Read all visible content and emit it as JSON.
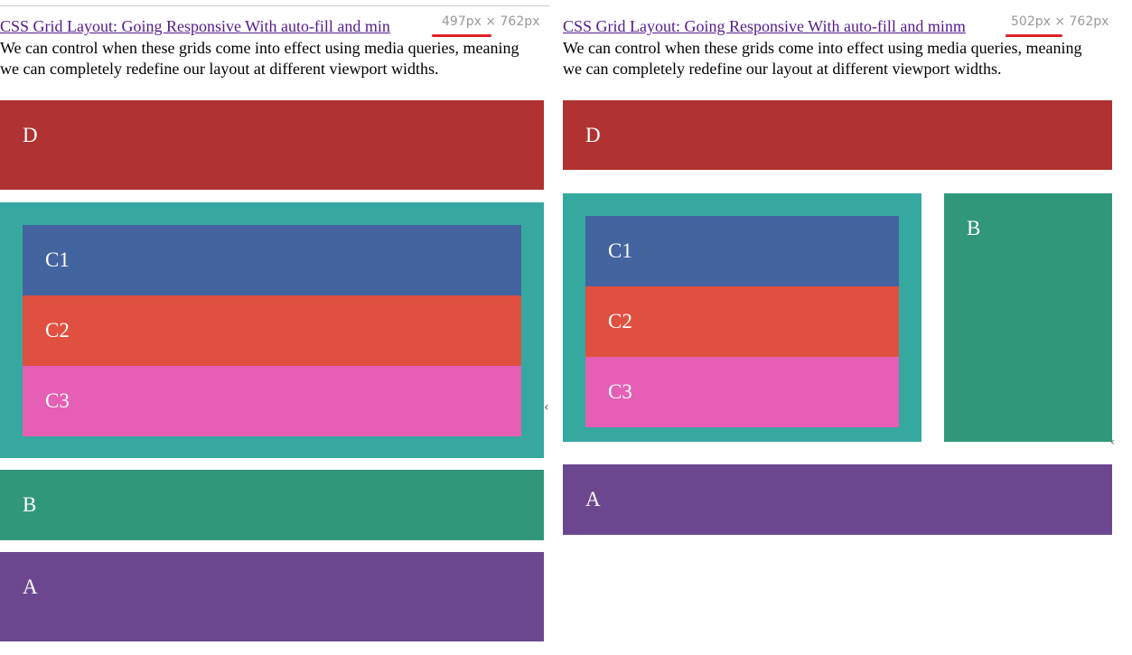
{
  "panels": [
    {
      "link": "CSS Grid Layout: Going Responsive With auto-fill and min",
      "viewport_size": "497px × 762px",
      "paragraph": "We can control when these grids come into effect using media queries, meaning we can completely redefine our layout at different viewport widths.",
      "boxes": {
        "d": "D",
        "c1": "C1",
        "c2": "C2",
        "c3": "C3",
        "b": "B",
        "a": "A"
      }
    },
    {
      "link": "CSS Grid Layout: Going Responsive With auto-fill and minm",
      "viewport_size": "502px × 762px",
      "paragraph": "We can control when these grids come into effect using media queries, meaning we can completely redefine our layout at different viewport widths.",
      "boxes": {
        "d": "D",
        "c1": "C1",
        "c2": "C2",
        "c3": "C3",
        "b": "B",
        "a": "A"
      }
    }
  ]
}
